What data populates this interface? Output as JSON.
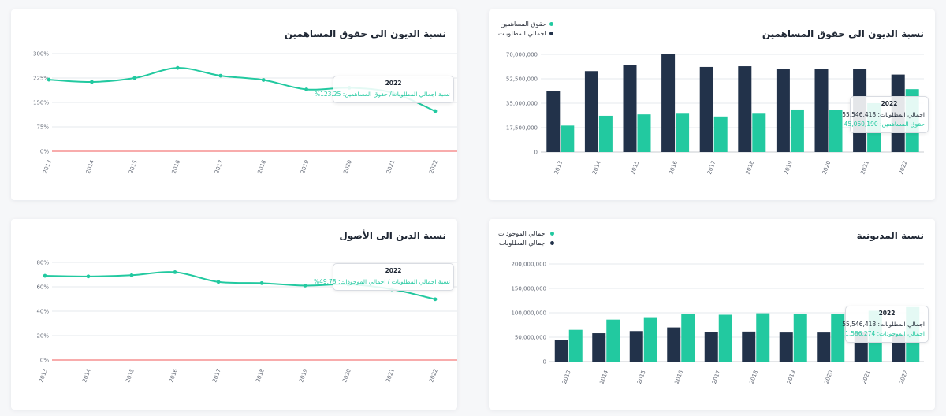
{
  "colors": {
    "green": "#22c9a0",
    "navy": "#22324a",
    "red": "#f15a5a"
  },
  "cards": {
    "tl": {
      "title": "نسبة الديون الى حقوق المساهمين",
      "tooltip": {
        "year": "2022",
        "row1": "نسبة اجمالي المطلوبات/ حقوق المساهمين: 123.25%"
      }
    },
    "tr": {
      "title": "نسبة الديون الى حقوق المساهمين",
      "legend": [
        "حقوق المساهمين",
        "اجمالي المطلوبات"
      ],
      "tooltip": {
        "year": "2022",
        "row1": "اجمالي المطلوبات: 55,546,418",
        "row2": "حقوق المساهمين: 45,060,190"
      }
    },
    "bl": {
      "title": "نسبة الدين الى الأصول",
      "tooltip": {
        "year": "2022",
        "row1": "نسبة اجمالي المطلوبات / اجمالي الموجودات: 49.78%"
      }
    },
    "br": {
      "title": "نسبة المديونية",
      "legend": [
        "اجمالي الموجودات",
        "اجمالي المطلوبات"
      ],
      "tooltip": {
        "year": "2022",
        "row1": "اجمالي المطلوبات: 55,546,418",
        "row2": "اجمالي الموجودات: 111,586,274"
      }
    }
  },
  "chart_data": [
    {
      "id": "tl",
      "type": "line",
      "title": "نسبة الديون الى حقوق المساهمين",
      "x": [
        "2013",
        "2014",
        "2015",
        "2016",
        "2017",
        "2018",
        "2019",
        "2020",
        "2021",
        "2022"
      ],
      "series": [
        {
          "values": [
            220,
            213,
            225,
            256,
            232,
            219,
            190,
            195,
            180,
            123.25
          ]
        }
      ],
      "ylim": [
        0,
        300
      ],
      "yticks": [
        "0%",
        "75%",
        "150%",
        "225%",
        "300%"
      ],
      "grid": true,
      "baseline_color": "red"
    },
    {
      "id": "tr",
      "type": "bar",
      "title": "نسبة الديون الى حقوق المساهمين",
      "categories": [
        "2013",
        "2014",
        "2015",
        "2016",
        "2017",
        "2018",
        "2019",
        "2020",
        "2021",
        "2022"
      ],
      "series": [
        {
          "name": "حقوق المساهمين",
          "values": [
            19000000,
            26000000,
            27000000,
            27500000,
            25500000,
            27500000,
            30500000,
            30000000,
            35000000,
            45060190
          ]
        },
        {
          "name": "اجمالي المطلوبات",
          "values": [
            44000000,
            58000000,
            62500000,
            70000000,
            61000000,
            61500000,
            59500000,
            59500000,
            59500000,
            55546418
          ]
        }
      ],
      "ylim": [
        0,
        70000000
      ],
      "yticks": [
        "0",
        "17,500,000",
        "35,000,000",
        "52,500,000",
        "70,000,000"
      ],
      "legend": "top-left"
    },
    {
      "id": "bl",
      "type": "line",
      "title": "نسبة الدين الى الأصول",
      "x": [
        "2013",
        "2014",
        "2015",
        "2016",
        "2017",
        "2018",
        "2019",
        "2020",
        "2021",
        "2022"
      ],
      "series": [
        {
          "values": [
            69,
            68.5,
            69.5,
            72,
            64,
            63,
            61,
            62,
            58,
            49.78
          ]
        }
      ],
      "ylim": [
        0,
        80
      ],
      "yticks": [
        "0%",
        "20%",
        "40%",
        "60%",
        "80%"
      ],
      "grid": true,
      "baseline_color": "red"
    },
    {
      "id": "br",
      "type": "bar",
      "title": "نسبة المديونية",
      "categories": [
        "2013",
        "2014",
        "2015",
        "2016",
        "2017",
        "2018",
        "2019",
        "2020",
        "2021",
        "2022"
      ],
      "series": [
        {
          "name": "اجمالي الموجودات",
          "values": [
            65000000,
            86000000,
            91000000,
            98000000,
            96000000,
            99000000,
            98000000,
            98000000,
            104000000,
            111586274
          ]
        },
        {
          "name": "اجمالي المطلوبات",
          "values": [
            44000000,
            58000000,
            62500000,
            70000000,
            61000000,
            61500000,
            59500000,
            59500000,
            59500000,
            55546418
          ]
        }
      ],
      "ylim": [
        0,
        200000000
      ],
      "yticks": [
        "0",
        "50,000,000",
        "100,000,000",
        "150,000,000",
        "200,000,000"
      ],
      "legend": "top-left"
    }
  ]
}
